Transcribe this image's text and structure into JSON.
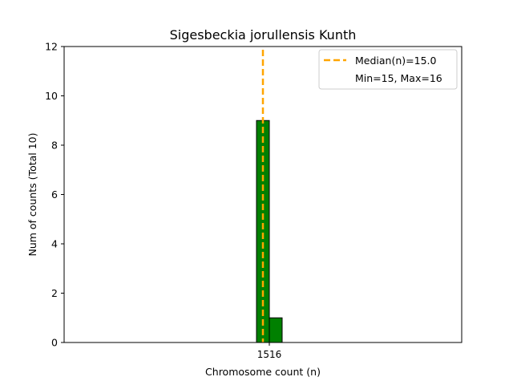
{
  "chart_data": {
    "type": "bar",
    "title": "Sigesbeckia jorullensis Kunth",
    "xlabel": "Chromosome count (n)",
    "ylabel": "Num of counts     (Total 10)",
    "ylim": [
      0,
      12
    ],
    "yticks": [
      0,
      2,
      4,
      6,
      8,
      10,
      12
    ],
    "x_tick_label": "1516",
    "bars": [
      {
        "x": 15,
        "value": 9
      },
      {
        "x": 16,
        "value": 1
      }
    ],
    "bar_color": "#008000",
    "median_line": {
      "x": 15.0,
      "color": "#FFA500"
    },
    "legend": {
      "position": "top-right",
      "entries": [
        "Median(n)=15.0",
        "Min=15, Max=16"
      ]
    }
  }
}
